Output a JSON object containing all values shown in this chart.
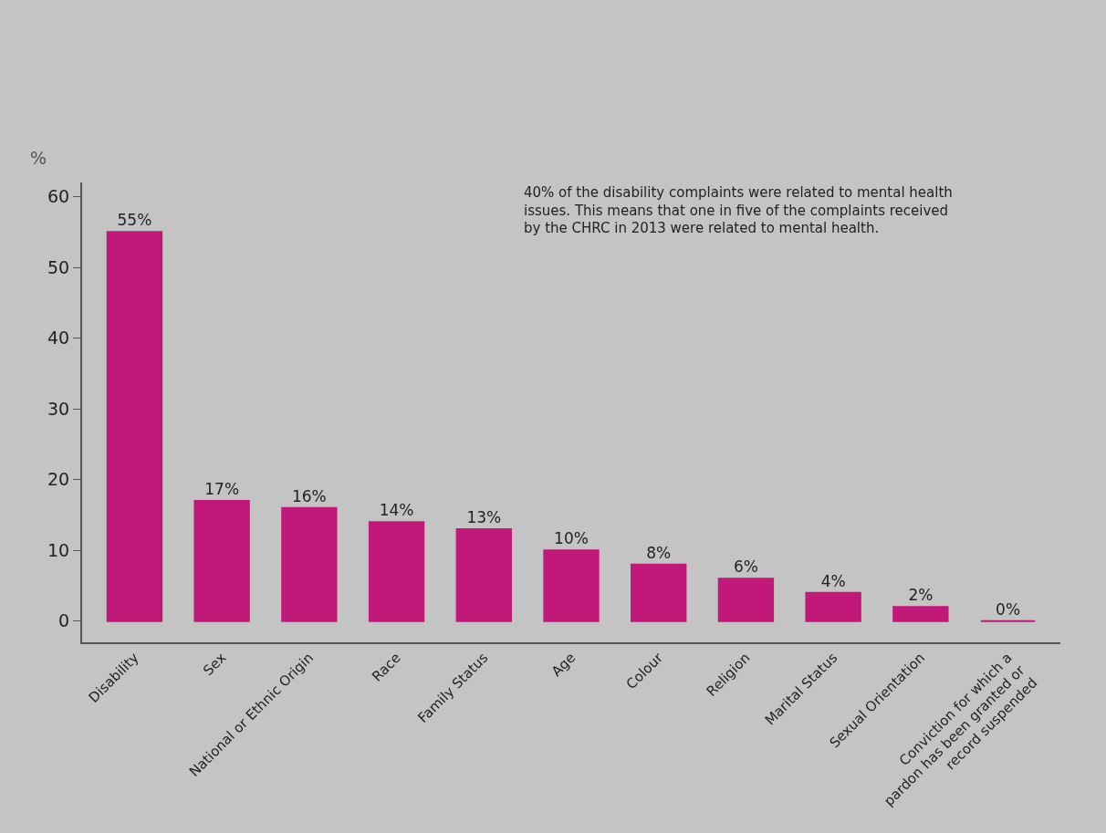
{
  "chart_data": {
    "type": "bar",
    "categories": [
      "Disability",
      "Sex",
      "National or Ethnic Origin",
      "Race",
      "Family Status",
      "Age",
      "Colour",
      "Religion",
      "Marital Status",
      "Sexual Orientation",
      "Conviction for which a pardon has been granted or record suspended"
    ],
    "values": [
      55,
      17,
      16,
      14,
      13,
      10,
      8,
      6,
      4,
      2,
      0
    ],
    "value_labels": [
      "55%",
      "17%",
      "16%",
      "14%",
      "13%",
      "10%",
      "8%",
      "6%",
      "4%",
      "2%",
      "0%"
    ],
    "color": "#c2187a",
    "ylabel": "%",
    "ylim": [
      -3,
      62
    ],
    "yticks": [
      0,
      10,
      20,
      30,
      40,
      50,
      60
    ],
    "grid": false,
    "annotations": [
      "40% of the disability complaints were related to mental health issues. This means that one in five of the complaints received by the CHRC in 2013 were related to mental health."
    ]
  }
}
